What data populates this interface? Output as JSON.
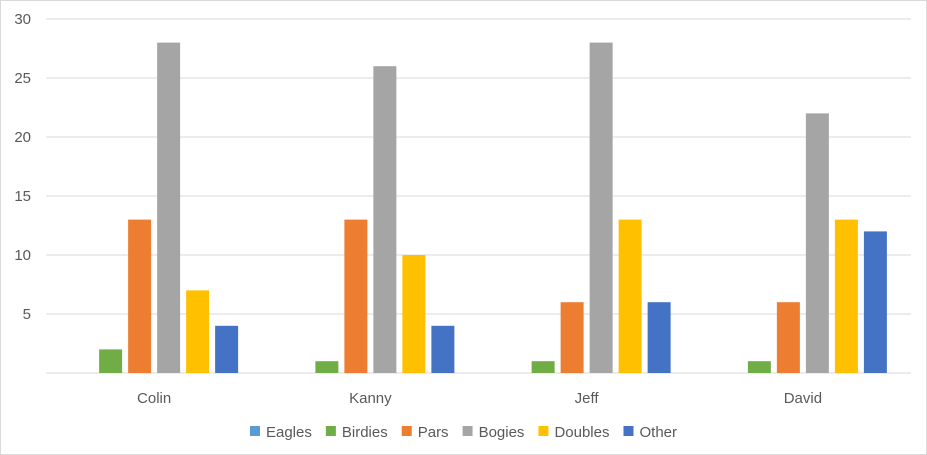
{
  "chart_data": {
    "type": "bar",
    "title": "",
    "xlabel": "",
    "ylabel": "",
    "categories": [
      "Colin",
      "Kanny",
      "Jeff",
      "David"
    ],
    "ylim": [
      0,
      30
    ],
    "yticks": [
      "5",
      "10",
      "15",
      "20",
      "25",
      "30"
    ],
    "grid": true,
    "legend_position": "bottom",
    "series": [
      {
        "name": "Eagles",
        "color": "#5b9bd5",
        "values": [
          0,
          0,
          0,
          0
        ]
      },
      {
        "name": "Birdies",
        "color": "#70ad47",
        "values": [
          2,
          1,
          1,
          1
        ]
      },
      {
        "name": "Pars",
        "color": "#ed7d31",
        "values": [
          13,
          13,
          6,
          6
        ]
      },
      {
        "name": "Bogies",
        "color": "#a5a5a5",
        "values": [
          28,
          26,
          28,
          22
        ]
      },
      {
        "name": "Doubles",
        "color": "#ffc000",
        "values": [
          7,
          10,
          13,
          13
        ]
      },
      {
        "name": "Other",
        "color": "#4472c4",
        "values": [
          4,
          4,
          6,
          12
        ]
      }
    ]
  }
}
